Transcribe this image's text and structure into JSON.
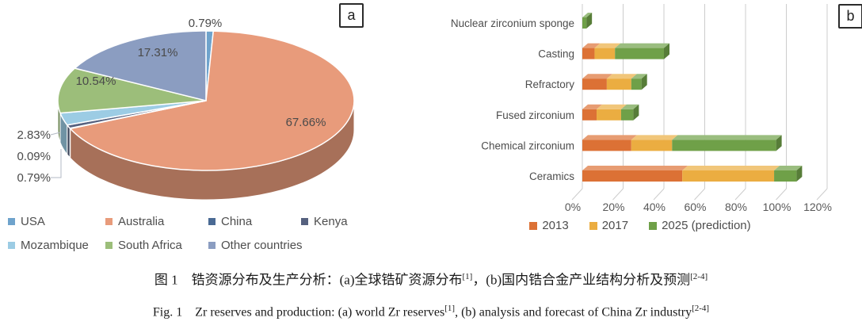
{
  "figure": {
    "panel_a_tag": "a",
    "panel_b_tag": "b"
  },
  "caption": {
    "zh": {
      "p1": "图 1　锆资源分布及生产分析：(a)全球锆矿资源分布",
      "s1": "[1]",
      "p2": "，(b)国内锆合金产业结构分析及预测",
      "s2": "[2-4]"
    },
    "en": {
      "p1": "Fig. 1　Zr reserves and production: (a) world Zr reserves",
      "s1": "[1]",
      "p2": ", (b) analysis and forecast of China Zr industry",
      "s2": "[2-4]"
    }
  },
  "chart_data": [
    {
      "type": "pie",
      "effect": "3d",
      "legend_position": "bottom",
      "labels": [
        "USA",
        "Australia",
        "China",
        "Kenya",
        "Mozambique",
        "South Africa",
        "Other countries"
      ],
      "values": [
        0.79,
        67.66,
        0.09,
        0.79,
        2.83,
        10.54,
        17.31
      ],
      "display_labels": [
        "0.79%",
        "67.66%",
        "0.09%",
        "0.79%",
        "2.83%",
        "10.54%",
        "17.31%"
      ],
      "colors": [
        "#6FA3CC",
        "#E89B7B",
        "#4A6A94",
        "#56617F",
        "#9CCCE4",
        "#9CBE7A",
        "#8B9DC1"
      ]
    },
    {
      "type": "bar",
      "orientation": "horizontal",
      "stacked": true,
      "effect": "3d",
      "legend_position": "bottom",
      "categories": [
        "Nuclear zirconium sponge",
        "Casting",
        "Refractory",
        "Fused zirconium",
        "Chemical zirconium",
        "Ceramics"
      ],
      "series": [
        {
          "name": "2013",
          "color": "#DC7135",
          "values": [
            0,
            6,
            12,
            7,
            24,
            49
          ]
        },
        {
          "name": "2017",
          "color": "#EBAD41",
          "values": [
            0,
            10,
            12,
            12,
            20,
            45
          ]
        },
        {
          "name": "2025（prediction)",
          "color": "#6FA048",
          "values": [
            2,
            24,
            5,
            6,
            51,
            11
          ]
        }
      ],
      "legend_names": [
        "2013",
        "2017",
        "2025 (prediction)"
      ],
      "xlim": [
        0,
        120
      ],
      "xticks": [
        "0%",
        "20%",
        "40%",
        "60%",
        "80%",
        "100%",
        "120%"
      ],
      "grid": true
    }
  ]
}
